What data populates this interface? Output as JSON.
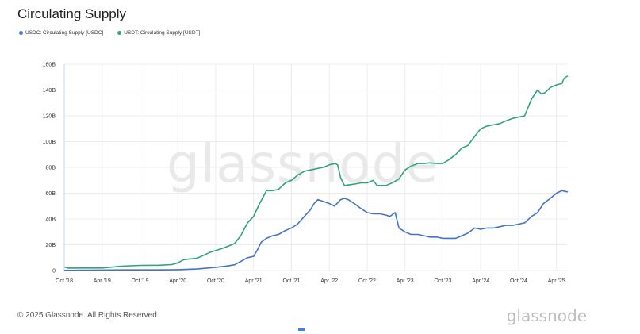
{
  "header": {
    "title": "Circulating Supply"
  },
  "watermark": "glassnode",
  "footer": {
    "copyright": "© 2025 Glassnode. All Rights Reserved.",
    "logo": "glassnode"
  },
  "colors": {
    "usdc": "#4472c4",
    "usdt": "#2fa37a",
    "grid": "#ececec"
  },
  "chart_data": {
    "type": "line",
    "ylim": [
      0,
      160
    ],
    "yticks": [
      "0",
      "20B",
      "40B",
      "60B",
      "80B",
      "100B",
      "120B",
      "140B",
      "160B"
    ],
    "xticks": [
      "Oct '18",
      "Apr '19",
      "Oct '19",
      "Apr '20",
      "Oct '20",
      "Apr '21",
      "Oct '21",
      "Apr '22",
      "Oct '22",
      "Apr '23",
      "Oct '23",
      "Apr '24",
      "Oct '24",
      "Apr '25"
    ],
    "xlim": [
      2018.75,
      2025.4
    ],
    "series": [
      {
        "name": "USDC: Circulating Supply [USDC]",
        "key": "usdc",
        "points": [
          [
            2018.75,
            0.1
          ],
          [
            2019.0,
            0.3
          ],
          [
            2019.25,
            0.4
          ],
          [
            2019.5,
            0.5
          ],
          [
            2019.75,
            0.5
          ],
          [
            2020.0,
            0.5
          ],
          [
            2020.25,
            0.7
          ],
          [
            2020.5,
            1.2
          ],
          [
            2020.75,
            2.5
          ],
          [
            2020.9,
            3.5
          ],
          [
            2021.0,
            4.5
          ],
          [
            2021.08,
            7
          ],
          [
            2021.17,
            10
          ],
          [
            2021.25,
            11
          ],
          [
            2021.3,
            16
          ],
          [
            2021.35,
            22
          ],
          [
            2021.42,
            25
          ],
          [
            2021.5,
            27
          ],
          [
            2021.58,
            28
          ],
          [
            2021.67,
            31
          ],
          [
            2021.75,
            33
          ],
          [
            2021.83,
            36
          ],
          [
            2021.92,
            42
          ],
          [
            2022.0,
            47
          ],
          [
            2022.05,
            52
          ],
          [
            2022.1,
            55
          ],
          [
            2022.15,
            54
          ],
          [
            2022.25,
            52
          ],
          [
            2022.32,
            50
          ],
          [
            2022.4,
            55
          ],
          [
            2022.45,
            56
          ],
          [
            2022.5,
            55
          ],
          [
            2022.58,
            52
          ],
          [
            2022.67,
            48
          ],
          [
            2022.75,
            45
          ],
          [
            2022.83,
            44
          ],
          [
            2022.92,
            44
          ],
          [
            2023.0,
            43
          ],
          [
            2023.05,
            42
          ],
          [
            2023.12,
            45
          ],
          [
            2023.17,
            33
          ],
          [
            2023.25,
            30
          ],
          [
            2023.33,
            28
          ],
          [
            2023.42,
            28
          ],
          [
            2023.5,
            27
          ],
          [
            2023.58,
            26
          ],
          [
            2023.67,
            26
          ],
          [
            2023.75,
            25
          ],
          [
            2023.83,
            25
          ],
          [
            2023.92,
            25
          ],
          [
            2024.0,
            27
          ],
          [
            2024.08,
            29
          ],
          [
            2024.17,
            33
          ],
          [
            2024.25,
            32
          ],
          [
            2024.33,
            33
          ],
          [
            2024.42,
            33
          ],
          [
            2024.5,
            34
          ],
          [
            2024.58,
            35
          ],
          [
            2024.67,
            35
          ],
          [
            2024.75,
            36
          ],
          [
            2024.83,
            37
          ],
          [
            2024.92,
            42
          ],
          [
            2025.0,
            45
          ],
          [
            2025.08,
            52
          ],
          [
            2025.17,
            56
          ],
          [
            2025.25,
            60
          ],
          [
            2025.32,
            62
          ],
          [
            2025.4,
            61
          ]
        ]
      },
      {
        "name": "USDT: Circulating Supply [USDT]",
        "key": "usdt",
        "points": [
          [
            2018.75,
            2.8
          ],
          [
            2018.8,
            1.9
          ],
          [
            2019.0,
            2.0
          ],
          [
            2019.25,
            2.0
          ],
          [
            2019.5,
            3.3
          ],
          [
            2019.75,
            4.0
          ],
          [
            2020.0,
            4.1
          ],
          [
            2020.17,
            4.6
          ],
          [
            2020.25,
            6.0
          ],
          [
            2020.33,
            8.5
          ],
          [
            2020.5,
            9.5
          ],
          [
            2020.67,
            14
          ],
          [
            2020.75,
            15.5
          ],
          [
            2020.83,
            17
          ],
          [
            2020.92,
            19
          ],
          [
            2021.0,
            21
          ],
          [
            2021.08,
            27
          ],
          [
            2021.17,
            37
          ],
          [
            2021.25,
            42
          ],
          [
            2021.33,
            52
          ],
          [
            2021.42,
            62
          ],
          [
            2021.5,
            62
          ],
          [
            2021.58,
            63
          ],
          [
            2021.67,
            68
          ],
          [
            2021.75,
            70
          ],
          [
            2021.83,
            74
          ],
          [
            2021.92,
            77
          ],
          [
            2022.0,
            78
          ],
          [
            2022.08,
            79
          ],
          [
            2022.17,
            80
          ],
          [
            2022.25,
            82
          ],
          [
            2022.33,
            83
          ],
          [
            2022.36,
            82
          ],
          [
            2022.4,
            72
          ],
          [
            2022.45,
            66
          ],
          [
            2022.58,
            67
          ],
          [
            2022.67,
            68
          ],
          [
            2022.75,
            68
          ],
          [
            2022.83,
            70
          ],
          [
            2022.88,
            66
          ],
          [
            2023.0,
            66
          ],
          [
            2023.08,
            68
          ],
          [
            2023.17,
            71
          ],
          [
            2023.25,
            78
          ],
          [
            2023.33,
            81
          ],
          [
            2023.42,
            83
          ],
          [
            2023.5,
            83
          ],
          [
            2023.58,
            83.5
          ],
          [
            2023.67,
            83
          ],
          [
            2023.75,
            83
          ],
          [
            2023.83,
            86
          ],
          [
            2023.92,
            90
          ],
          [
            2024.0,
            95
          ],
          [
            2024.08,
            97
          ],
          [
            2024.17,
            104
          ],
          [
            2024.25,
            110
          ],
          [
            2024.33,
            112
          ],
          [
            2024.42,
            113
          ],
          [
            2024.5,
            114
          ],
          [
            2024.58,
            116
          ],
          [
            2024.67,
            118
          ],
          [
            2024.75,
            119
          ],
          [
            2024.83,
            120
          ],
          [
            2024.92,
            133
          ],
          [
            2025.0,
            140
          ],
          [
            2025.05,
            137
          ],
          [
            2025.1,
            138
          ],
          [
            2025.17,
            142
          ],
          [
            2025.25,
            144
          ],
          [
            2025.32,
            145
          ],
          [
            2025.35,
            149
          ],
          [
            2025.4,
            151
          ]
        ]
      }
    ]
  }
}
